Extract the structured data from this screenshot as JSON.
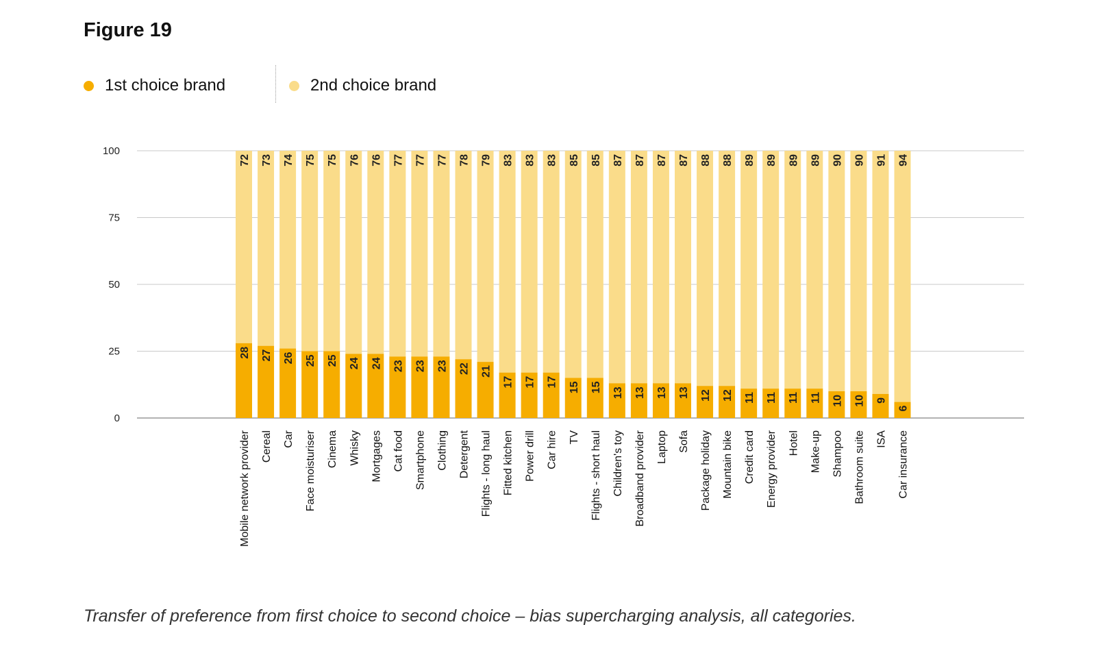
{
  "figure_title": "Figure 19",
  "caption": "Transfer of preference from first choice to second choice – bias supercharging analysis, all categories.",
  "colors": {
    "first": "#F6AD00",
    "second": "#FADC8A",
    "grid": "#c8c8c8",
    "axis": "#999999"
  },
  "chart_data": {
    "type": "bar",
    "stacked": true,
    "ylim": [
      0,
      100
    ],
    "yticks": [
      0,
      25,
      50,
      75,
      100
    ],
    "grid": true,
    "legend_position": "top-left",
    "categories": [
      "Mobile network provider",
      "Cereal",
      "Car",
      "Face moisturiser",
      "Cinema",
      "Whisky",
      "Mortgages",
      "Cat food",
      "Smartphone",
      "Clothing",
      "Detergent",
      "Flights - long haul",
      "Fitted kitchen",
      "Power drill",
      "Car hire",
      "TV",
      "Flights - short haul",
      "Children's toy",
      "Broadband provider",
      "Laptop",
      "Sofa",
      "Package holiday",
      "Mountain bike",
      "Credit card",
      "Energy provider",
      "Hotel",
      "Make-up",
      "Shampoo",
      "Bathroom suite",
      "ISA",
      "Car insurance"
    ],
    "series": [
      {
        "name": "1st choice brand",
        "values": [
          28,
          27,
          26,
          25,
          25,
          24,
          24,
          23,
          23,
          23,
          22,
          21,
          17,
          17,
          17,
          15,
          15,
          13,
          13,
          13,
          13,
          12,
          12,
          11,
          11,
          11,
          11,
          10,
          10,
          9,
          6
        ]
      },
      {
        "name": "2nd choice brand",
        "values": [
          72,
          73,
          74,
          75,
          75,
          76,
          76,
          77,
          77,
          77,
          78,
          79,
          83,
          83,
          83,
          85,
          85,
          87,
          87,
          87,
          87,
          88,
          88,
          89,
          89,
          89,
          89,
          90,
          90,
          91,
          94
        ]
      }
    ]
  }
}
